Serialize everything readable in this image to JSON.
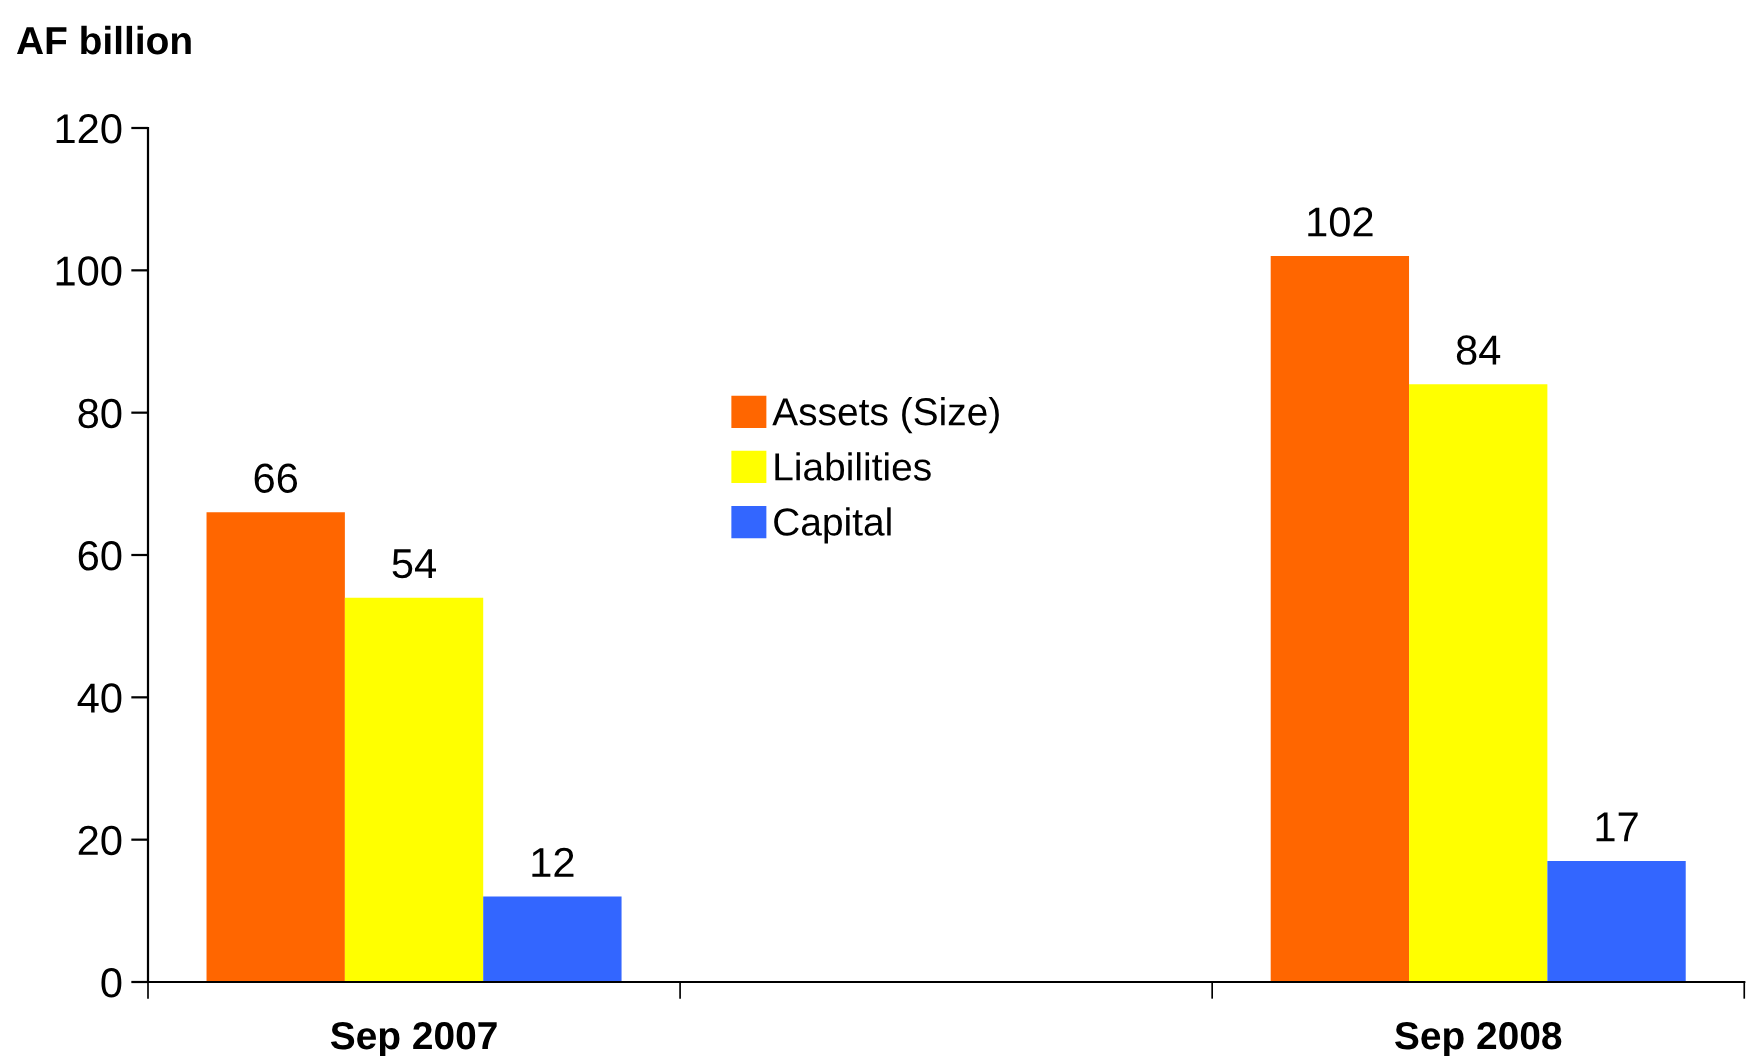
{
  "chart_data": {
    "type": "bar",
    "ylabel": "AF billion",
    "categories": [
      "Sep 2007",
      null,
      "Sep 2008"
    ],
    "series": [
      {
        "name": "Assets (Size)",
        "color": "#ff6600",
        "values": [
          66,
          null,
          102
        ]
      },
      {
        "name": "Liabilities",
        "color": "#ffff00",
        "values": [
          54,
          null,
          84
        ]
      },
      {
        "name": "Capital",
        "color": "#3366ff",
        "values": [
          12,
          null,
          17
        ]
      }
    ],
    "ylim": [
      0,
      120
    ],
    "yticks": [
      0,
      20,
      40,
      60,
      80,
      100,
      120
    ],
    "data_labels": true,
    "legend": "center",
    "grid": false
  }
}
